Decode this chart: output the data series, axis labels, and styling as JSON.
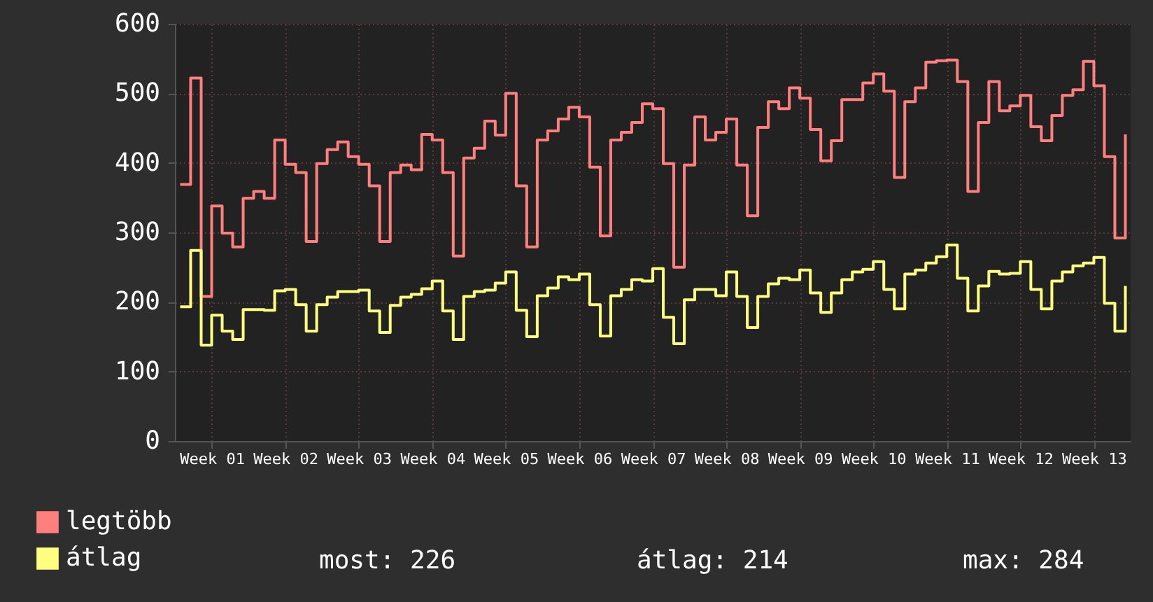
{
  "chart_data": {
    "type": "step",
    "categories": [
      null,
      null,
      null,
      "Week 01",
      null,
      null,
      null,
      null,
      null,
      null,
      "Week 02",
      null,
      null,
      null,
      null,
      null,
      null,
      "Week 03",
      null,
      null,
      null,
      null,
      null,
      null,
      "Week 04",
      null,
      null,
      null,
      null,
      null,
      null,
      "Week 05",
      null,
      null,
      null,
      null,
      null,
      null,
      "Week 06",
      null,
      null,
      null,
      null,
      null,
      null,
      "Week 07",
      null,
      null,
      null,
      null,
      null,
      null,
      "Week 08",
      null,
      null,
      null,
      null,
      null,
      null,
      "Week 09",
      null,
      null,
      null,
      null,
      null,
      null,
      "Week 10",
      null,
      null,
      null,
      null,
      null,
      null,
      "Week 11",
      null,
      null,
      null,
      null,
      null,
      null,
      "Week 12",
      null,
      null,
      null,
      null,
      null,
      null,
      "Week 13",
      null,
      null,
      null
    ],
    "series": [
      {
        "name": "legtöbb",
        "color": "#ff7f7f",
        "values": [
          369,
          522,
          208,
          338,
          299,
          279,
          349,
          359,
          349,
          433,
          398,
          386,
          287,
          399,
          419,
          430,
          409,
          398,
          367,
          287,
          386,
          397,
          390,
          441,
          433,
          386,
          266,
          407,
          421,
          460,
          440,
          500,
          367,
          279,
          433,
          446,
          463,
          480,
          466,
          394,
          295,
          433,
          444,
          458,
          485,
          478,
          399,
          250,
          397,
          466,
          433,
          444,
          463,
          397,
          324,
          451,
          488,
          478,
          508,
          493,
          448,
          403,
          432,
          491,
          491,
          515,
          528,
          503,
          379,
          488,
          508,
          545,
          547,
          548,
          517,
          359,
          458,
          517,
          475,
          482,
          497,
          452,
          432,
          468,
          497,
          505,
          546,
          511,
          409,
          292,
          441
        ]
      },
      {
        "name": "átlag",
        "color": "#ffff7f",
        "values": [
          193,
          274,
          138,
          181,
          158,
          146,
          189,
          189,
          188,
          216,
          218,
          196,
          158,
          196,
          207,
          215,
          215,
          217,
          187,
          156,
          195,
          207,
          211,
          219,
          230,
          187,
          146,
          208,
          215,
          217,
          227,
          243,
          188,
          150,
          209,
          220,
          236,
          232,
          240,
          196,
          151,
          209,
          218,
          232,
          230,
          248,
          178,
          140,
          203,
          218,
          218,
          209,
          243,
          208,
          163,
          208,
          226,
          234,
          232,
          246,
          213,
          185,
          213,
          232,
          243,
          247,
          258,
          218,
          190,
          240,
          246,
          256,
          265,
          282,
          234,
          187,
          223,
          244,
          240,
          241,
          258,
          218,
          190,
          230,
          243,
          252,
          256,
          264,
          198,
          158,
          223
        ]
      }
    ],
    "ylim": [
      0,
      600
    ],
    "yticks": [
      0,
      100,
      200,
      300,
      400,
      500,
      600
    ],
    "grid": true,
    "legend": "bottom left",
    "line_style": "solid",
    "annotations": [
      "most: 226",
      "átlag: 214",
      "max: 284"
    ]
  }
}
